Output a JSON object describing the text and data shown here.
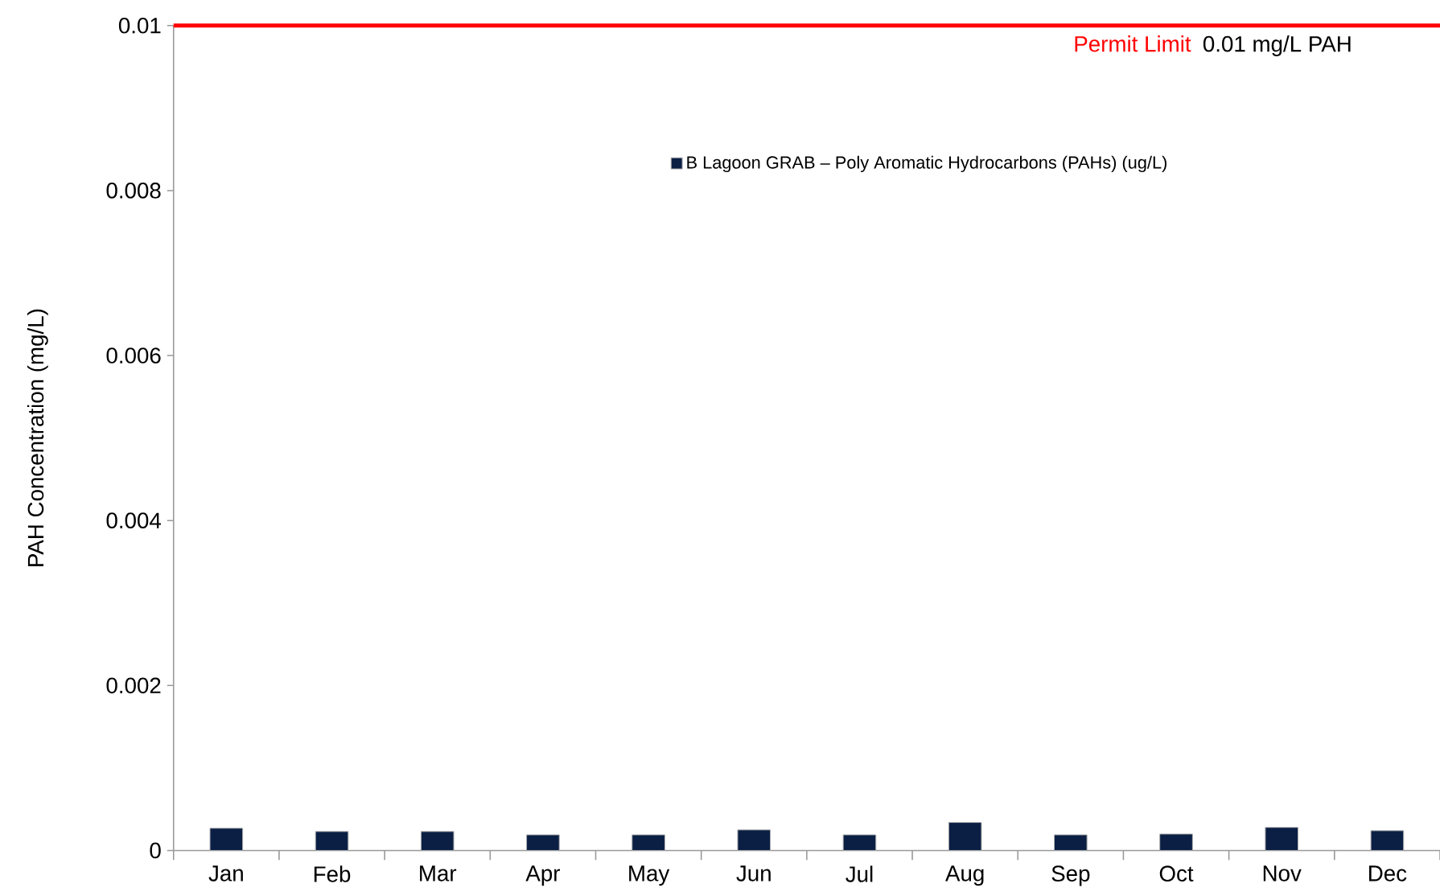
{
  "chart_data": {
    "type": "bar",
    "ylabel": "PAH Concentration (mg/L)",
    "categories": [
      "Jan",
      "Feb",
      "Mar",
      "Apr",
      "May",
      "Jun",
      "Jul",
      "Aug",
      "Sep",
      "Oct",
      "Nov",
      "Dec"
    ],
    "series": [
      {
        "name": "B Lagoon GRAB – Poly Aromatic Hydrocarbons (PAHs) (ug/L)",
        "color": "#0b1f44",
        "values": [
          0.00027,
          0.00023,
          0.00023,
          0.00019,
          0.00019,
          0.00025,
          0.00019,
          0.00034,
          0.00019,
          0.0002,
          0.00028,
          0.00024
        ]
      }
    ],
    "ylim": [
      0,
      0.01
    ],
    "yticks": [
      0,
      0.002,
      0.004,
      0.006,
      0.008,
      0.01
    ],
    "legend": "top",
    "ref_lines": [
      {
        "axis": "y",
        "value": 0.01,
        "label": "Permit Limit",
        "color": "#ff0000"
      }
    ],
    "annotations": [
      {
        "text": "0.01 mg/L PAH",
        "y": 0.01
      }
    ]
  }
}
